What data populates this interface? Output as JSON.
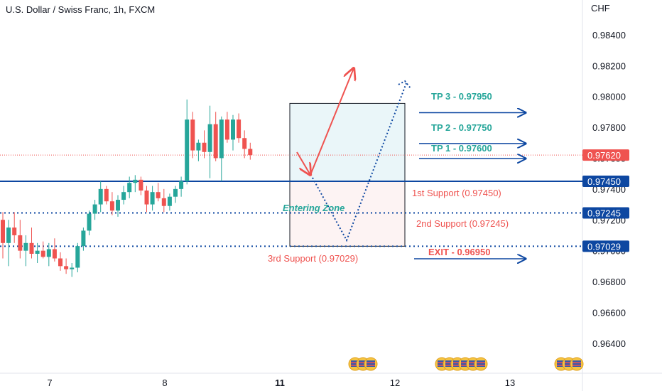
{
  "header": {
    "title": "U.S. Dollar / Swiss Franc, 1h, FXCM",
    "currency": "CHF"
  },
  "chart_data": {
    "type": "candlestick",
    "title": "U.S. Dollar / Swiss Franc, 1h, FXCM",
    "ylabel": "CHF",
    "ylim": [
      0.9625,
      0.985
    ],
    "y_ticks": [
      "0.98400",
      "0.98200",
      "0.98000",
      "0.97800",
      "0.97600",
      "0.97400",
      "0.97200",
      "0.97000",
      "0.96800",
      "0.96600",
      "0.96400"
    ],
    "x_ticks": [
      {
        "label": "7",
        "i": 6
      },
      {
        "label": "8",
        "i": 23
      },
      {
        "label": "11",
        "i": 41,
        "bold": true
      },
      {
        "label": "12",
        "i": 59
      },
      {
        "label": "13",
        "i": 76
      }
    ],
    "colors": {
      "up": "#26a69a",
      "down": "#ef5350",
      "support": "#0d47a1",
      "tp_text": "#26a69a",
      "support_text": "#ef5350",
      "price_badge": "#ef5350"
    },
    "candles": [
      [
        0.972,
        0.9725,
        0.9695,
        0.9705
      ],
      [
        0.9705,
        0.972,
        0.969,
        0.9715
      ],
      [
        0.9715,
        0.9725,
        0.9705,
        0.971
      ],
      [
        0.971,
        0.972,
        0.9695,
        0.97
      ],
      [
        0.97,
        0.971,
        0.969,
        0.9705
      ],
      [
        0.9705,
        0.9715,
        0.9695,
        0.9698
      ],
      [
        0.9698,
        0.9705,
        0.9692,
        0.97
      ],
      [
        0.97,
        0.9706,
        0.9695,
        0.9696
      ],
      [
        0.9696,
        0.9705,
        0.969,
        0.9701
      ],
      [
        0.9701,
        0.9708,
        0.9693,
        0.9695
      ],
      [
        0.9695,
        0.9699,
        0.9687,
        0.969
      ],
      [
        0.969,
        0.9695,
        0.9685,
        0.9688
      ],
      [
        0.9688,
        0.9692,
        0.9683,
        0.9689
      ],
      [
        0.9689,
        0.9705,
        0.9686,
        0.9703
      ],
      [
        0.9703,
        0.9715,
        0.97,
        0.9713
      ],
      [
        0.9713,
        0.9726,
        0.971,
        0.9724
      ],
      [
        0.9724,
        0.9733,
        0.972,
        0.973
      ],
      [
        0.973,
        0.9745,
        0.9725,
        0.974
      ],
      [
        0.974,
        0.9742,
        0.973,
        0.9732
      ],
      [
        0.9732,
        0.9738,
        0.9723,
        0.9726
      ],
      [
        0.9726,
        0.9736,
        0.9722,
        0.9733
      ],
      [
        0.9733,
        0.9742,
        0.973,
        0.9738
      ],
      [
        0.9738,
        0.9748,
        0.9734,
        0.9744
      ],
      [
        0.9744,
        0.9749,
        0.9738,
        0.9746
      ],
      [
        0.9746,
        0.9748,
        0.9736,
        0.9739
      ],
      [
        0.9739,
        0.9742,
        0.9725,
        0.973
      ],
      [
        0.973,
        0.9742,
        0.9726,
        0.9738
      ],
      [
        0.9738,
        0.9744,
        0.9732,
        0.9734
      ],
      [
        0.9734,
        0.974,
        0.9725,
        0.9729
      ],
      [
        0.9729,
        0.9737,
        0.9726,
        0.9735
      ],
      [
        0.9735,
        0.9742,
        0.9731,
        0.974
      ],
      [
        0.974,
        0.9748,
        0.9735,
        0.9745
      ],
      [
        0.9745,
        0.9798,
        0.9743,
        0.9785
      ],
      [
        0.9785,
        0.979,
        0.976,
        0.9765
      ],
      [
        0.9765,
        0.9772,
        0.9758,
        0.977
      ],
      [
        0.977,
        0.9778,
        0.976,
        0.9764
      ],
      [
        0.9764,
        0.9794,
        0.9747,
        0.9782
      ],
      [
        0.9782,
        0.979,
        0.9758,
        0.976
      ],
      [
        0.976,
        0.9787,
        0.9745,
        0.9785
      ],
      [
        0.9785,
        0.979,
        0.977,
        0.9772
      ],
      [
        0.9772,
        0.9788,
        0.9765,
        0.9785
      ],
      [
        0.9785,
        0.9789,
        0.977,
        0.9773
      ],
      [
        0.9773,
        0.9778,
        0.976,
        0.9766
      ],
      [
        0.9766,
        0.977,
        0.9759,
        0.9762
      ]
    ],
    "levels": [
      {
        "value": 0.9745,
        "style": "solid",
        "badge": "0.97450"
      },
      {
        "value": 0.97245,
        "style": "dotted",
        "badge": "0.97245"
      },
      {
        "value": 0.97029,
        "style": "dotted",
        "badge": "0.97029"
      }
    ],
    "current_price": {
      "value": 0.9762,
      "badge": "0.97620"
    },
    "annotations": {
      "tp3": "TP 3 - 0.97950",
      "tp2": "TP 2 - 0.97750",
      "tp1": "TP 1 - 0.97600",
      "exit": "EXIT - 0.96950",
      "support1": "1st Support (0.97450)",
      "support2": "2nd Support (0.97245)",
      "support3": "3rd Support (0.97029)",
      "zone": "Entering Zone"
    },
    "event_icon_groups": [
      3,
      6,
      3
    ]
  }
}
